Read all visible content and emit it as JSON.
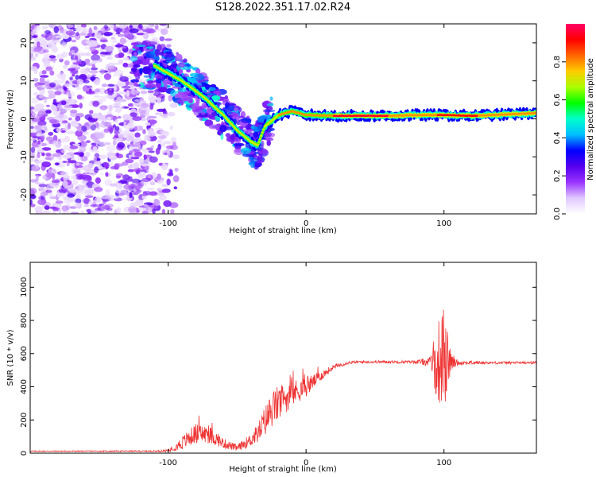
{
  "title": "S128.2022.351.17.02.R24",
  "chart_data": [
    {
      "type": "heatmap",
      "xlabel": "Height of straight line (km)",
      "ylabel": "Frequency (Hz)",
      "xlim": [
        -200,
        167
      ],
      "ylim": [
        -25,
        25
      ],
      "xticks": [
        -100,
        0,
        100
      ],
      "yticks": [
        -20,
        -10,
        0,
        10,
        20
      ],
      "colorbar": {
        "label": "Normalized spectral amplitude",
        "range": [
          0,
          1
        ],
        "ticks": [
          0.0,
          0.2,
          0.4,
          0.6,
          0.8
        ],
        "colors": [
          "#ffffff",
          "#e0c8ff",
          "#9933ff",
          "#5500ee",
          "#0000ff",
          "#00bfff",
          "#00ffcc",
          "#00ff00",
          "#aaff00",
          "#ffcc00",
          "#ff6600",
          "#ff0000",
          "#ff0066"
        ]
      },
      "ridge_frequency": [
        {
          "x": -110,
          "f": 14
        },
        {
          "x": -90,
          "f": 10
        },
        {
          "x": -75,
          "f": 6
        },
        {
          "x": -60,
          "f": 1
        },
        {
          "x": -50,
          "f": -3
        },
        {
          "x": -40,
          "f": -6
        },
        {
          "x": -35,
          "f": -7
        },
        {
          "x": -30,
          "f": -2
        },
        {
          "x": -20,
          "f": 1
        },
        {
          "x": -10,
          "f": 2
        },
        {
          "x": 0,
          "f": 1
        },
        {
          "x": 20,
          "f": 0.8
        },
        {
          "x": 60,
          "f": 0.8
        },
        {
          "x": 80,
          "f": 1
        },
        {
          "x": 95,
          "f": 1
        },
        {
          "x": 100,
          "f": 1
        },
        {
          "x": 120,
          "f": 0.8
        },
        {
          "x": 167,
          "f": 1.5
        }
      ]
    },
    {
      "type": "line",
      "xlabel": "Height of straight line (km)",
      "ylabel": "SNR (10 * v/v)",
      "xlim": [
        -200,
        167
      ],
      "ylim": [
        0,
        1150
      ],
      "xticks": [
        -100,
        0,
        100
      ],
      "yticks": [
        0,
        200,
        400,
        600,
        800,
        1000
      ],
      "color": "#ee3333",
      "envelope": {
        "x": [
          -200,
          -150,
          -110,
          -100,
          -90,
          -80,
          -70,
          -60,
          -50,
          -40,
          -35,
          -30,
          -25,
          -20,
          -15,
          -10,
          -5,
          0,
          10,
          20,
          30,
          40,
          60,
          80,
          90,
          95,
          100,
          105,
          110,
          130,
          150,
          167
        ],
        "y": [
          12,
          12,
          12,
          15,
          60,
          120,
          110,
          60,
          30,
          80,
          120,
          190,
          260,
          300,
          330,
          360,
          380,
          400,
          460,
          520,
          545,
          550,
          550,
          550,
          550,
          555,
          560,
          550,
          545,
          545,
          545,
          545
        ],
        "noise": [
          3,
          3,
          4,
          8,
          40,
          60,
          55,
          30,
          20,
          40,
          60,
          90,
          110,
          110,
          90,
          80,
          70,
          60,
          30,
          15,
          10,
          8,
          8,
          10,
          30,
          250,
          300,
          60,
          15,
          8,
          8,
          8
        ]
      }
    }
  ]
}
